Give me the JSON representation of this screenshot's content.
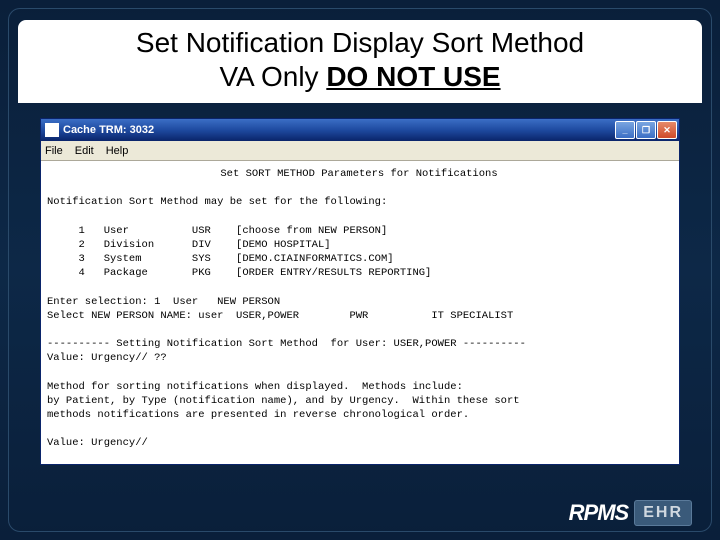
{
  "slide": {
    "title_line1": "Set Notification Display Sort Method",
    "title_line2_a": "VA Only ",
    "title_line2_b": "DO NOT USE"
  },
  "window": {
    "title": "Cache TRM: 3032",
    "menu": {
      "file": "File",
      "edit": "Edit",
      "help": "Help"
    },
    "btn_min": "_",
    "btn_max": "❐",
    "btn_close": "✕"
  },
  "term": {
    "header": "Set SORT METHOD Parameters for Notifications",
    "intro": "Notification Sort Method may be set for the following:",
    "opt1": "     1   User          USR    [choose from NEW PERSON]",
    "opt2": "     2   Division      DIV    [DEMO HOSPITAL]",
    "opt3": "     3   System        SYS    [DEMO.CIAINFORMATICS.COM]",
    "opt4": "     4   Package       PKG    [ORDER ENTRY/RESULTS REPORTING]",
    "sel": "Enter selection: 1  User   NEW PERSON",
    "sel2": "Select NEW PERSON NAME: user  USER,POWER        PWR          IT SPECIALIST",
    "div": "---------- Setting Notification Sort Method  for User: USER,POWER ----------",
    "val1": "Value: Urgency// ??",
    "m1": "Method for sorting notifications when displayed.  Methods include:",
    "m2": "by Patient, by Type (notification name), and by Urgency.  Within these sort",
    "m3": "methods notifications are presented in reverse chronological order.",
    "val2": "Value: Urgency//"
  },
  "logo": {
    "rpms": "RPMS",
    "ehr": "EHR"
  }
}
